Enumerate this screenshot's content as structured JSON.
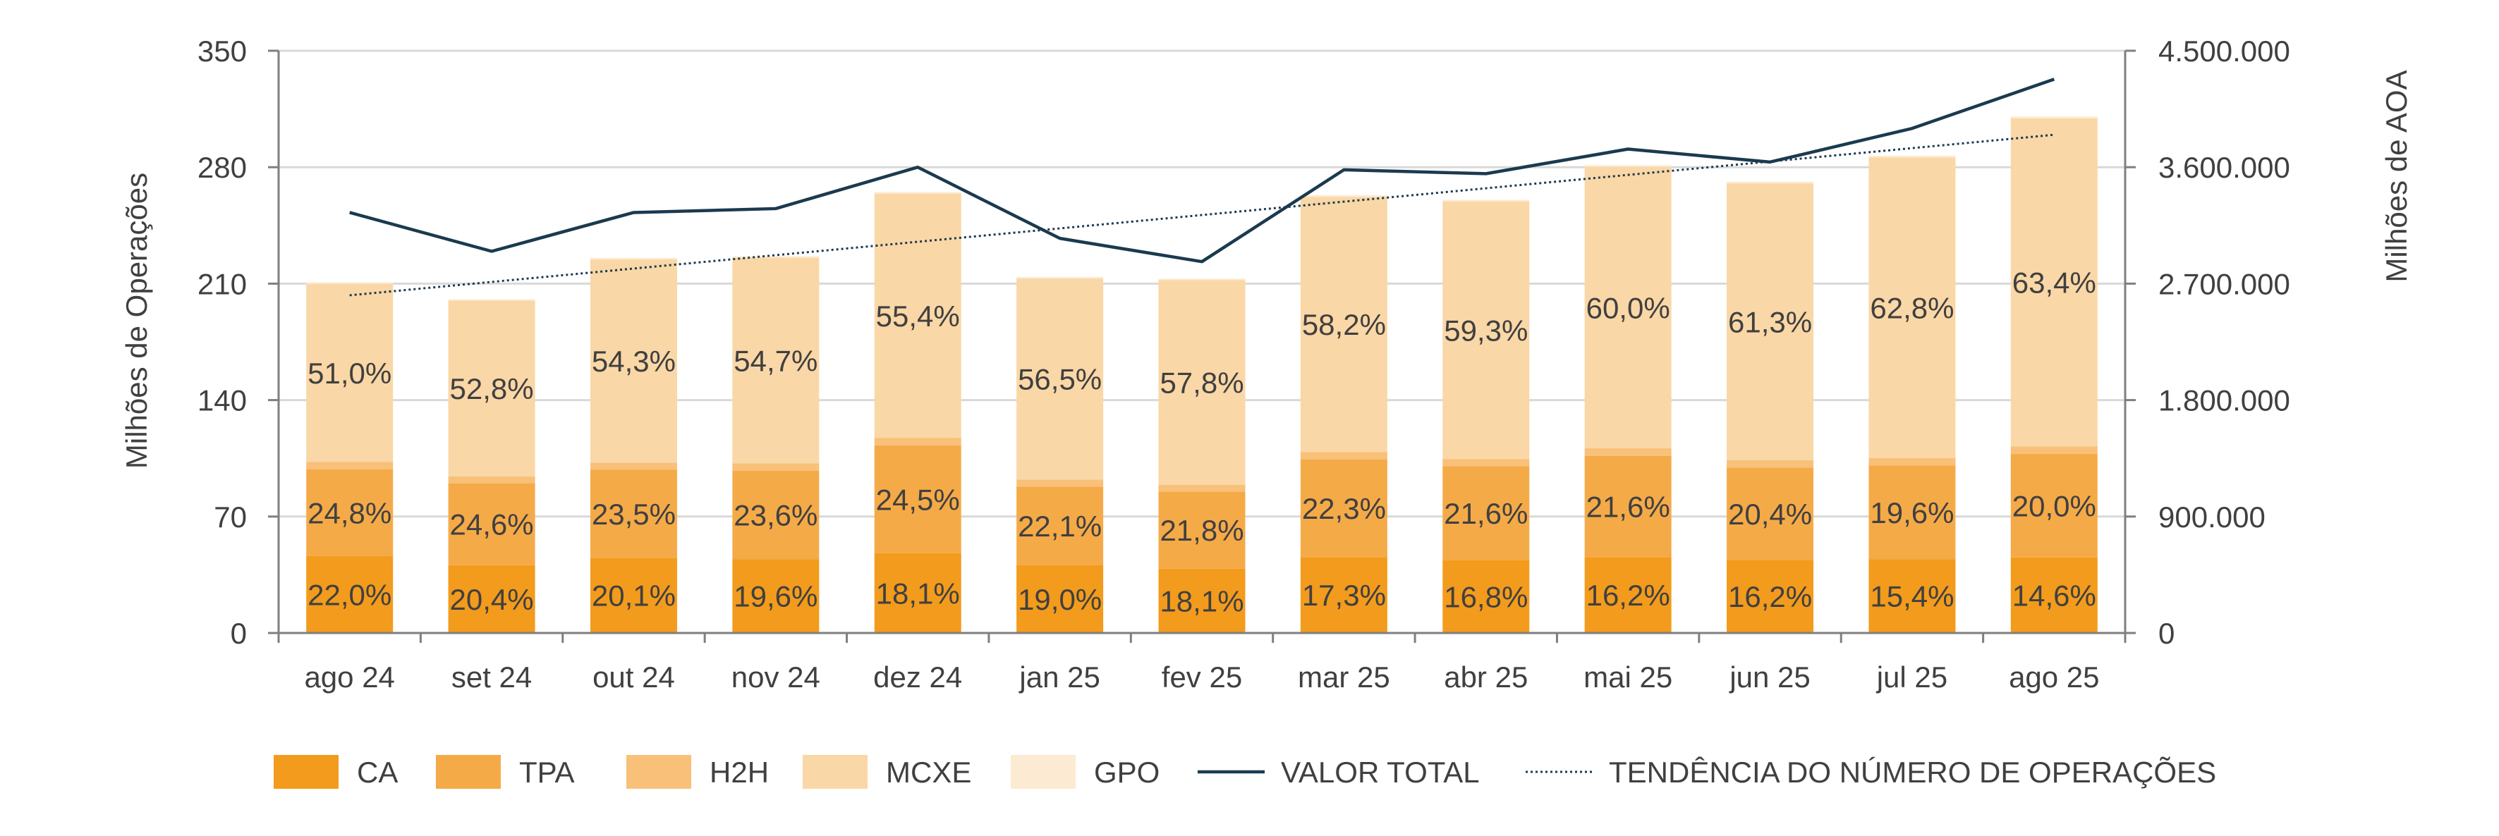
{
  "chart_data": {
    "type": "bar",
    "stacked": true,
    "categories": [
      "ago 24",
      "set 24",
      "out 24",
      "nov 24",
      "dez 24",
      "jan 25",
      "fev 25",
      "mar 25",
      "abr 25",
      "mai 25",
      "jun 25",
      "jul 25",
      "ago 25"
    ],
    "series": [
      {
        "name": "CA",
        "color": "#F39B1C",
        "values": [
          46.2,
          40.8,
          45.2,
          44.3,
          47.9,
          40.7,
          38.6,
          45.6,
          43.8,
          45.6,
          44.0,
          44.3,
          45.4
        ],
        "labels": [
          "22,0%",
          "20,4%",
          "20,1%",
          "19,6%",
          "18,1%",
          "19,0%",
          "18,1%",
          "17,3%",
          "16,8%",
          "16,2%",
          "16,2%",
          "15,4%",
          "14,6%"
        ]
      },
      {
        "name": "TPA",
        "color": "#F5AA48",
        "values": [
          52.1,
          49.2,
          52.9,
          53.3,
          64.9,
          47.3,
          46.4,
          58.8,
          56.4,
          60.9,
          55.4,
          56.4,
          62.2
        ],
        "labels": [
          "24,8%",
          "24,6%",
          "23,5%",
          "23,6%",
          "24,5%",
          "22,1%",
          "21,8%",
          "22,3%",
          "21,6%",
          "21,6%",
          "20,4%",
          "19,6%",
          "20,0%"
        ]
      },
      {
        "name": "H2H",
        "color": "#F8C078",
        "values": [
          4.5,
          4.2,
          4.3,
          4.4,
          4.5,
          4.2,
          4.1,
          4.4,
          4.4,
          4.5,
          4.4,
          4.4,
          4.6
        ],
        "labels": [
          "",
          "",
          "",
          "",
          "",
          "",
          "",
          "",
          "",
          "",
          "",
          "",
          ""
        ]
      },
      {
        "name": "MCXE",
        "color": "#FAD7A6",
        "values": [
          107.1,
          105.6,
          122.2,
          123.6,
          146.8,
          120.9,
          123.1,
          153.4,
          154.8,
          169.2,
          166.5,
          180.8,
          197.2
        ],
        "labels": [
          "51,0%",
          "52,8%",
          "54,3%",
          "54,7%",
          "55,4%",
          "56,5%",
          "57,8%",
          "58,2%",
          "59,3%",
          "60,0%",
          "61,3%",
          "62,8%",
          "63,4%"
        ]
      },
      {
        "name": "GPO",
        "color": "#FCEBD2",
        "values": [
          0.9,
          0.8,
          0.9,
          0.9,
          1.0,
          0.9,
          0.8,
          1.0,
          1.0,
          1.0,
          1.0,
          1.0,
          1.1
        ],
        "labels": [
          "",
          "",
          "",
          "",
          "",
          "",
          "",
          "",
          "",
          "",
          "",
          "",
          ""
        ]
      }
    ],
    "line_series": {
      "name": "VALOR TOTAL",
      "color": "#1B3A4F",
      "axis": "right",
      "values": [
        3250000,
        2950000,
        3250000,
        3280000,
        3600000,
        3050000,
        2870000,
        3580000,
        3550000,
        3740000,
        3640000,
        3900000,
        4280000
      ]
    },
    "trend_series": {
      "name": "TENDÊNCIA DO NÚMERO DE OPERAÇÕES",
      "color": "#1B3A4F",
      "style": "dotted",
      "axis": "left",
      "values": [
        203,
        207.3,
        211.6,
        215.9,
        220.2,
        224.5,
        228.8,
        233.1,
        237.4,
        241.7,
        246,
        250.3,
        299.5
      ]
    },
    "left_axis": {
      "label": "Milhões de Operações",
      "ylim": [
        0,
        350
      ],
      "ticks": [
        "0",
        "70",
        "140",
        "210",
        "280",
        "350"
      ]
    },
    "right_axis": {
      "label": "Milhões de AOA",
      "ylim": [
        0,
        4500000
      ],
      "ticks": [
        "0",
        "900.000",
        "1.800.000",
        "2.700.000",
        "3.600.000",
        "4.500.000"
      ]
    },
    "grid": true,
    "legend_position": "bottom",
    "legend": [
      "CA",
      "TPA",
      "H2H",
      "MCXE",
      "GPO",
      "VALOR TOTAL",
      "TENDÊNCIA DO NÚMERO DE OPERAÇÕES"
    ]
  }
}
